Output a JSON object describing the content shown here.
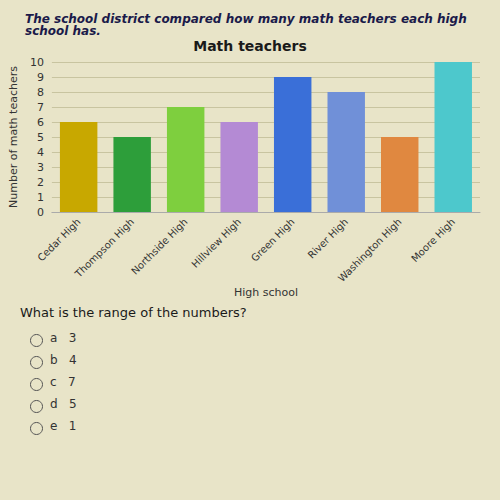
{
  "chart_data": {
    "type": "bar",
    "title": "Math teachers",
    "subtitle": "The school district compared how many math teachers each high school has.",
    "x_label": "High school",
    "y_label": "Number of math teachers",
    "categories": [
      "Cedar High",
      "Thompson High",
      "Northside High",
      "Hillview High",
      "Green High",
      "River High",
      "Washington High",
      "Moore High"
    ],
    "values": [
      6,
      5,
      7,
      6,
      9,
      8,
      5,
      10
    ],
    "colors": [
      "#c8a800",
      "#2d9e3a",
      "#7ecf3e",
      "#b48ad4",
      "#3a6fd8",
      "#7090d8",
      "#e08840",
      "#4dc8cc"
    ],
    "ylim": [
      0,
      10
    ],
    "yticks": [
      0,
      1,
      2,
      3,
      4,
      5,
      6,
      7,
      8,
      9,
      10
    ],
    "grid": true,
    "annotations": [
      "What is the range of the numbers?",
      "a   3",
      "b   4",
      "c   7",
      "d   5",
      "e   1"
    ]
  }
}
